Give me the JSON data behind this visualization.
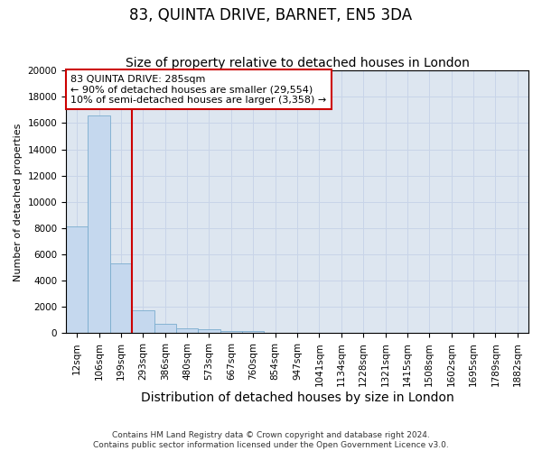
{
  "title": "83, QUINTA DRIVE, BARNET, EN5 3DA",
  "subtitle": "Size of property relative to detached houses in London",
  "xlabel": "Distribution of detached houses by size in London",
  "ylabel": "Number of detached properties",
  "footnote1": "Contains HM Land Registry data © Crown copyright and database right 2024.",
  "footnote2": "Contains public sector information licensed under the Open Government Licence v3.0.",
  "annotation_line1": "83 QUINTA DRIVE: 285sqm",
  "annotation_line2": "← 90% of detached houses are smaller (29,554)",
  "annotation_line3": "10% of semi-detached houses are larger (3,358) →",
  "bar_color": "#c5d8ee",
  "bar_edge_color": "#7aacce",
  "vline_color": "#cc0000",
  "vline_x_idx": 2.5,
  "categories": [
    "12sqm",
    "106sqm",
    "199sqm",
    "293sqm",
    "386sqm",
    "480sqm",
    "573sqm",
    "667sqm",
    "760sqm",
    "854sqm",
    "947sqm",
    "1041sqm",
    "1134sqm",
    "1228sqm",
    "1321sqm",
    "1415sqm",
    "1508sqm",
    "1602sqm",
    "1695sqm",
    "1789sqm",
    "1882sqm"
  ],
  "values": [
    8100,
    16600,
    5300,
    1750,
    750,
    350,
    290,
    190,
    160,
    0,
    0,
    0,
    0,
    0,
    0,
    0,
    0,
    0,
    0,
    0,
    0
  ],
  "ylim": [
    0,
    20000
  ],
  "yticks": [
    0,
    2000,
    4000,
    6000,
    8000,
    10000,
    12000,
    14000,
    16000,
    18000,
    20000
  ],
  "grid_color": "#c8d4e8",
  "bg_color": "#dde6f0",
  "title_fontsize": 12,
  "subtitle_fontsize": 10,
  "xlabel_fontsize": 10,
  "ylabel_fontsize": 8,
  "tick_fontsize": 7.5,
  "annot_fontsize": 8,
  "footnote_fontsize": 6.5
}
